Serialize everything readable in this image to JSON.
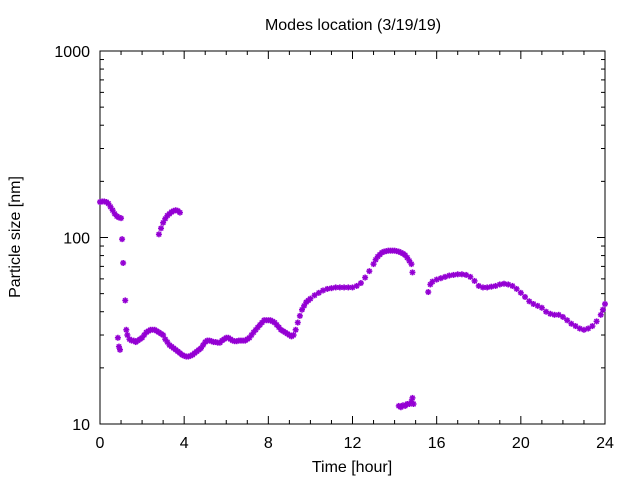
{
  "chart_data": {
    "type": "scatter",
    "title": "Modes location (3/19/19)",
    "xlabel": "Time [hour]",
    "ylabel": "Particle size [nm]",
    "xlim": [
      0,
      24
    ],
    "ylim": [
      10,
      1000
    ],
    "yscale": "log",
    "x_ticks": [
      0,
      4,
      8,
      12,
      16,
      20,
      24
    ],
    "x_tick_labels": [
      "0",
      "4",
      "8",
      "12",
      "16",
      "20",
      "24"
    ],
    "y_ticks": [
      10,
      100,
      1000
    ],
    "y_tick_labels": [
      "10",
      "100",
      "1000"
    ],
    "grid": false,
    "legend": "none",
    "marker_color": "#9400D3",
    "series": [
      {
        "points": [
          [
            0.0,
            155
          ],
          [
            0.1,
            156
          ],
          [
            0.2,
            156
          ],
          [
            0.3,
            155
          ],
          [
            0.4,
            152
          ],
          [
            0.5,
            146
          ],
          [
            0.6,
            140
          ],
          [
            0.7,
            134
          ],
          [
            0.8,
            130
          ],
          [
            0.9,
            128
          ],
          [
            1.0,
            127
          ],
          [
            0.85,
            29
          ],
          [
            0.9,
            26
          ],
          [
            0.95,
            25
          ],
          [
            1.05,
            98
          ],
          [
            1.1,
            73
          ],
          [
            1.2,
            46
          ],
          [
            1.25,
            32
          ],
          [
            1.3,
            30
          ],
          [
            1.4,
            28.5
          ],
          [
            1.5,
            28
          ],
          [
            1.6,
            28
          ],
          [
            1.7,
            27.5
          ],
          [
            1.8,
            28
          ],
          [
            1.9,
            28.5
          ],
          [
            2.0,
            29
          ],
          [
            2.1,
            30
          ],
          [
            2.2,
            31
          ],
          [
            2.3,
            31.5
          ],
          [
            2.4,
            32
          ],
          [
            2.5,
            32
          ],
          [
            2.6,
            32
          ],
          [
            2.7,
            31.5
          ],
          [
            2.8,
            31
          ],
          [
            2.9,
            30.5
          ],
          [
            3.0,
            30
          ],
          [
            3.1,
            28.5
          ],
          [
            3.2,
            27.5
          ],
          [
            3.3,
            26.5
          ],
          [
            3.4,
            26
          ],
          [
            3.5,
            25.5
          ],
          [
            3.6,
            25
          ],
          [
            3.7,
            24.5
          ],
          [
            3.8,
            24
          ],
          [
            3.9,
            23.5
          ],
          [
            4.0,
            23.2
          ],
          [
            4.1,
            23
          ],
          [
            4.2,
            23
          ],
          [
            4.3,
            23.2
          ],
          [
            4.4,
            23.5
          ],
          [
            4.5,
            24
          ],
          [
            4.6,
            24.5
          ],
          [
            4.7,
            25
          ],
          [
            4.8,
            25.5
          ],
          [
            4.9,
            26.5
          ],
          [
            5.0,
            27.5
          ],
          [
            5.1,
            28
          ],
          [
            5.2,
            28
          ],
          [
            5.3,
            27.8
          ],
          [
            5.4,
            27.5
          ],
          [
            5.5,
            27.5
          ],
          [
            5.6,
            27.3
          ],
          [
            5.7,
            27.3
          ],
          [
            5.8,
            28
          ],
          [
            5.9,
            28.5
          ],
          [
            6.0,
            29
          ],
          [
            6.1,
            29
          ],
          [
            6.2,
            28.5
          ],
          [
            6.3,
            28
          ],
          [
            6.4,
            27.8
          ],
          [
            6.5,
            27.8
          ],
          [
            6.6,
            28
          ],
          [
            6.7,
            28
          ],
          [
            6.8,
            28
          ],
          [
            6.9,
            28
          ],
          [
            7.0,
            28.5
          ],
          [
            7.1,
            29
          ],
          [
            7.2,
            30
          ],
          [
            7.3,
            31
          ],
          [
            7.4,
            32
          ],
          [
            7.5,
            33
          ],
          [
            7.6,
            34
          ],
          [
            7.7,
            35
          ],
          [
            7.8,
            36
          ],
          [
            7.9,
            36
          ],
          [
            8.0,
            36
          ],
          [
            8.1,
            36
          ],
          [
            8.2,
            35.5
          ],
          [
            8.3,
            35
          ],
          [
            8.4,
            34
          ],
          [
            8.5,
            33
          ],
          [
            8.6,
            32
          ],
          [
            8.7,
            31.5
          ],
          [
            8.8,
            31
          ],
          [
            8.9,
            30.5
          ],
          [
            9.0,
            30
          ],
          [
            9.1,
            29.5
          ],
          [
            9.2,
            30
          ],
          [
            9.3,
            32
          ],
          [
            9.4,
            35
          ],
          [
            9.5,
            38
          ],
          [
            9.6,
            41
          ],
          [
            9.7,
            43
          ],
          [
            9.8,
            45
          ],
          [
            9.9,
            46
          ],
          [
            10.0,
            47
          ],
          [
            10.2,
            49
          ],
          [
            10.4,
            50.5
          ],
          [
            10.6,
            52
          ],
          [
            10.8,
            53
          ],
          [
            11.0,
            53.5
          ],
          [
            11.2,
            54
          ],
          [
            11.4,
            54
          ],
          [
            11.6,
            54
          ],
          [
            11.8,
            54
          ],
          [
            12.0,
            54
          ],
          [
            12.2,
            55
          ],
          [
            12.4,
            57
          ],
          [
            12.6,
            61
          ],
          [
            12.8,
            66
          ],
          [
            13.0,
            72
          ],
          [
            13.1,
            76
          ],
          [
            13.2,
            79
          ],
          [
            13.3,
            81
          ],
          [
            13.4,
            83
          ],
          [
            13.5,
            84
          ],
          [
            13.6,
            84.5
          ],
          [
            13.7,
            85
          ],
          [
            13.8,
            85
          ],
          [
            13.9,
            85
          ],
          [
            14.0,
            85
          ],
          [
            14.1,
            84.5
          ],
          [
            14.2,
            84
          ],
          [
            14.3,
            83
          ],
          [
            14.4,
            82
          ],
          [
            14.5,
            80.5
          ],
          [
            14.6,
            78
          ],
          [
            14.7,
            75
          ],
          [
            14.8,
            72
          ],
          [
            14.85,
            65
          ],
          [
            2.8,
            104
          ],
          [
            2.9,
            112
          ],
          [
            3.0,
            120
          ],
          [
            3.1,
            126
          ],
          [
            3.2,
            131
          ],
          [
            3.3,
            134
          ],
          [
            3.4,
            137
          ],
          [
            3.5,
            139
          ],
          [
            3.6,
            140
          ],
          [
            3.7,
            139
          ],
          [
            3.8,
            136
          ],
          [
            14.2,
            12.5
          ],
          [
            14.3,
            12.3
          ],
          [
            14.4,
            12.6
          ],
          [
            14.5,
            12.5
          ],
          [
            14.6,
            12.8
          ],
          [
            14.7,
            12.8
          ],
          [
            14.8,
            13.2
          ],
          [
            14.85,
            13.8
          ],
          [
            14.9,
            12.8
          ],
          [
            15.6,
            51
          ],
          [
            15.7,
            56
          ],
          [
            15.8,
            58
          ],
          [
            16.0,
            59.5
          ],
          [
            16.2,
            60.5
          ],
          [
            16.4,
            61.5
          ],
          [
            16.6,
            62.5
          ],
          [
            16.8,
            63
          ],
          [
            17.0,
            63.5
          ],
          [
            17.2,
            63.5
          ],
          [
            17.4,
            63
          ],
          [
            17.6,
            61.5
          ],
          [
            17.8,
            58.5
          ],
          [
            18.0,
            55
          ],
          [
            18.2,
            54
          ],
          [
            18.4,
            54
          ],
          [
            18.6,
            54.5
          ],
          [
            18.8,
            55
          ],
          [
            19.0,
            56
          ],
          [
            19.2,
            56.5
          ],
          [
            19.4,
            56
          ],
          [
            19.6,
            55
          ],
          [
            19.8,
            53
          ],
          [
            20.0,
            50.5
          ],
          [
            20.2,
            48
          ],
          [
            20.4,
            45.5
          ],
          [
            20.6,
            44
          ],
          [
            20.8,
            43
          ],
          [
            21.0,
            42
          ],
          [
            21.2,
            40
          ],
          [
            21.4,
            39
          ],
          [
            21.6,
            38.5
          ],
          [
            21.8,
            38.5
          ],
          [
            22.0,
            37.5
          ],
          [
            22.2,
            36
          ],
          [
            22.4,
            34.5
          ],
          [
            22.6,
            33.5
          ],
          [
            22.8,
            32.5
          ],
          [
            23.0,
            32
          ],
          [
            23.2,
            32.5
          ],
          [
            23.4,
            33.5
          ],
          [
            23.6,
            35.5
          ],
          [
            23.8,
            38.5
          ],
          [
            23.9,
            41
          ],
          [
            24.0,
            44
          ]
        ]
      }
    ]
  }
}
